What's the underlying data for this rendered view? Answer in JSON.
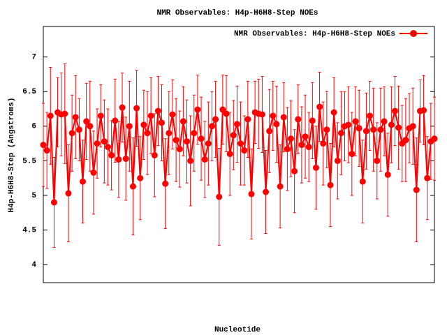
{
  "chart_data": {
    "type": "line",
    "title": "NMR Observables: H4p-H6H8-Step NOEs",
    "x_label": "Nucleotide",
    "y_label": "H4p-H6H8-Step (Angstroms)",
    "categories": [
      null,
      null,
      null,
      null,
      null,
      null,
      null,
      null,
      null,
      null,
      null,
      null,
      null,
      null,
      null,
      null,
      null,
      null,
      null,
      null,
      null,
      null,
      null,
      null,
      null,
      null,
      null,
      null,
      null,
      null,
      null,
      null,
      null,
      null,
      null,
      null,
      null,
      null,
      null,
      null,
      null,
      null,
      null,
      null,
      null,
      null,
      null,
      null,
      null,
      null,
      null,
      null,
      null,
      null,
      null,
      null,
      null,
      null,
      null,
      null,
      null,
      null,
      null,
      null,
      null,
      null,
      null,
      null,
      null,
      null,
      null,
      null,
      null,
      null,
      null,
      null,
      null,
      null,
      null,
      null,
      null,
      null,
      null,
      null,
      null,
      null,
      null,
      null,
      null,
      null,
      null,
      null,
      null,
      null,
      null,
      null,
      null,
      null,
      null,
      null,
      null,
      null,
      null,
      null,
      null,
      null,
      null,
      null,
      null,
      null
    ],
    "series": [
      {
        "name": "NMR Observables: H4p-H6H8-Step NOEs",
        "color": "#ff0000",
        "values": [
          5.73,
          5.65,
          6.15,
          4.9,
          6.2,
          6.17,
          6.18,
          5.03,
          5.9,
          6.13,
          5.95,
          5.2,
          6.07,
          6.0,
          5.33,
          5.75,
          6.15,
          5.78,
          5.7,
          5.58,
          6.08,
          5.52,
          6.27,
          5.53,
          6.0,
          5.13,
          6.26,
          5.25,
          6.02,
          5.9,
          6.15,
          5.58,
          6.22,
          6.05,
          5.17,
          5.9,
          6.17,
          5.8,
          5.67,
          6.07,
          5.78,
          5.5,
          5.9,
          6.24,
          5.82,
          5.52,
          5.75,
          6.0,
          6.1,
          4.98,
          6.24,
          6.18,
          5.6,
          5.87,
          6.03,
          5.75,
          5.65,
          6.1,
          5.02,
          6.2,
          6.18,
          6.17,
          5.05,
          5.93,
          6.15,
          6.03,
          5.13,
          6.13,
          5.67,
          5.82,
          5.35,
          6.1,
          5.73,
          5.85,
          5.7,
          6.08,
          5.4,
          6.28,
          5.75,
          5.95,
          5.15,
          6.2,
          5.5,
          5.9,
          6.0,
          6.02,
          5.6,
          6.07,
          5.97,
          5.2,
          5.93,
          6.15,
          5.95,
          5.5,
          5.95,
          6.07,
          5.3,
          6.02,
          6.22,
          5.98,
          5.75,
          5.8,
          5.97,
          6.0,
          5.08,
          6.22,
          6.23,
          5.25,
          5.78,
          5.82
        ],
        "errors": [
          0.6,
          0.55,
          0.7,
          0.65,
          0.5,
          0.6,
          0.72,
          0.7,
          0.55,
          0.6,
          0.45,
          0.6,
          0.55,
          0.65,
          0.6,
          0.5,
          0.45,
          0.6,
          0.55,
          0.5,
          0.6,
          0.55,
          0.5,
          0.6,
          0.65,
          0.7,
          0.55,
          0.6,
          0.5,
          0.6,
          0.55,
          0.6,
          0.5,
          0.55,
          0.65,
          0.6,
          0.5,
          0.6,
          0.55,
          0.5,
          0.6,
          0.65,
          0.55,
          0.5,
          0.6,
          0.55,
          0.6,
          0.5,
          0.55,
          0.7,
          0.5,
          0.55,
          0.6,
          0.5,
          0.55,
          0.6,
          0.5,
          0.55,
          0.65,
          0.45,
          0.5,
          0.55,
          0.6,
          0.6,
          0.5,
          0.55,
          0.6,
          0.5,
          0.6,
          0.55,
          0.6,
          0.5,
          0.55,
          0.6,
          0.5,
          0.55,
          0.6,
          0.5,
          0.6,
          0.55,
          0.6,
          0.5,
          0.55,
          0.6,
          0.5,
          0.55,
          0.6,
          0.5,
          0.55,
          0.6,
          0.55,
          0.5,
          0.6,
          0.55,
          0.6,
          0.5,
          0.6,
          0.55,
          0.5,
          0.6,
          0.55,
          0.6,
          0.5,
          0.55,
          0.75,
          0.45,
          0.5,
          0.6,
          0.55,
          0.6
        ]
      }
    ],
    "ylim": [
      3.74,
      7.44
    ],
    "yticks": [
      4,
      4.5,
      5,
      5.5,
      6,
      6.5,
      7
    ],
    "legend": "top-right"
  }
}
